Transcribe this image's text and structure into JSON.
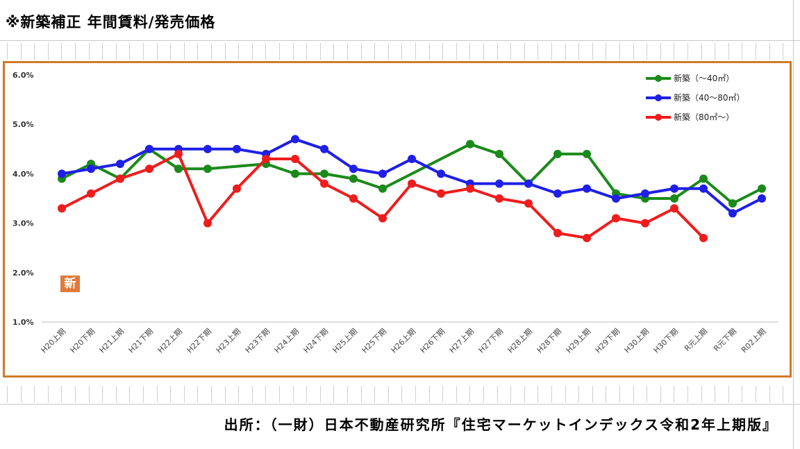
{
  "title": "※新築補正 年間賃料/発売価格",
  "source": "出所：（一財）日本不動産研究所『住宅マーケットインデックス令和2年上期版』",
  "badge": "新",
  "colors": {
    "frame": "#d07a26",
    "green": "#1a8a1a",
    "blue": "#1f1fe6",
    "red": "#ee1c1c"
  },
  "chart_data": {
    "type": "line",
    "categories": [
      "H20上期",
      "H20下期",
      "H21上期",
      "H21下期",
      "H22上期",
      "H22下期",
      "H23上期",
      "H23下期",
      "H24上期",
      "H24下期",
      "H25上期",
      "H25下期",
      "H26上期",
      "H26下期",
      "H27上期",
      "H27下期",
      "H28上期",
      "H28下期",
      "H29上期",
      "H29下期",
      "H30上期",
      "H30下期",
      "R元上期",
      "R元下期",
      "R02上期"
    ],
    "yticks": [
      "6.0%",
      "5.0%",
      "4.0%",
      "3.0%",
      "2.0%",
      "1.0%"
    ],
    "ylim": [
      1.0,
      6.0
    ],
    "legend_position": "top-right",
    "series": [
      {
        "name": "新築（～40㎡）",
        "color": "#1a8a1a",
        "values": [
          3.9,
          4.2,
          3.9,
          4.5,
          4.1,
          4.1,
          null,
          4.2,
          4.0,
          4.0,
          3.9,
          3.7,
          null,
          null,
          4.6,
          4.4,
          3.8,
          4.4,
          4.4,
          3.6,
          3.5,
          3.5,
          3.9,
          3.4,
          3.7
        ]
      },
      {
        "name": "新築（40～80㎡）",
        "color": "#1f1fe6",
        "values": [
          4.0,
          4.1,
          4.2,
          4.5,
          4.5,
          4.5,
          4.5,
          4.4,
          4.7,
          4.5,
          4.1,
          4.0,
          4.3,
          4.0,
          3.8,
          3.8,
          3.8,
          3.6,
          3.7,
          3.5,
          3.6,
          3.7,
          3.7,
          3.2,
          3.5
        ]
      },
      {
        "name": "新築（80㎡～）",
        "color": "#ee1c1c",
        "values": [
          3.3,
          3.6,
          3.9,
          4.1,
          4.4,
          3.0,
          3.7,
          4.3,
          4.3,
          3.8,
          3.5,
          3.1,
          3.8,
          3.6,
          3.7,
          3.5,
          3.4,
          2.8,
          2.7,
          3.1,
          3.0,
          3.3,
          2.7,
          null,
          null
        ]
      }
    ]
  }
}
